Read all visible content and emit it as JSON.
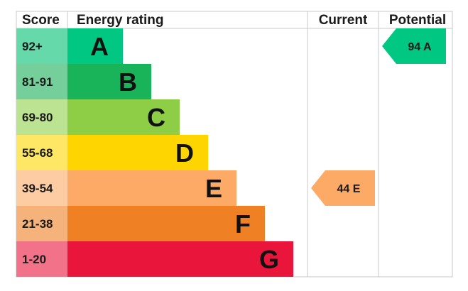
{
  "chart_data": {
    "type": "bar",
    "headers": {
      "score": "Score",
      "rating": "Energy rating",
      "current": "Current",
      "potential": "Potential"
    },
    "bands": [
      {
        "score": "92+",
        "letter": "A",
        "color": "#00c781",
        "score_bg": "#66d9ab"
      },
      {
        "score": "81-91",
        "letter": "B",
        "color": "#19b459",
        "score_bg": "#74cf9a"
      },
      {
        "score": "69-80",
        "letter": "C",
        "color": "#8dce46",
        "score_bg": "#bbe392"
      },
      {
        "score": "55-68",
        "letter": "D",
        "color": "#ffd500",
        "score_bg": "#ffe766"
      },
      {
        "score": "39-54",
        "letter": "E",
        "color": "#fcaa65",
        "score_bg": "#fdcca3"
      },
      {
        "score": "21-38",
        "letter": "F",
        "color": "#ef8023",
        "score_bg": "#f5b37b"
      },
      {
        "score": "1-20",
        "letter": "G",
        "color": "#e9153b",
        "score_bg": "#f27389"
      }
    ],
    "current": {
      "value": 44,
      "letter": "E",
      "label": "44 E",
      "color": "#fcaa65"
    },
    "potential": {
      "value": 94,
      "letter": "A",
      "label": "94 A",
      "color": "#00c781"
    }
  }
}
